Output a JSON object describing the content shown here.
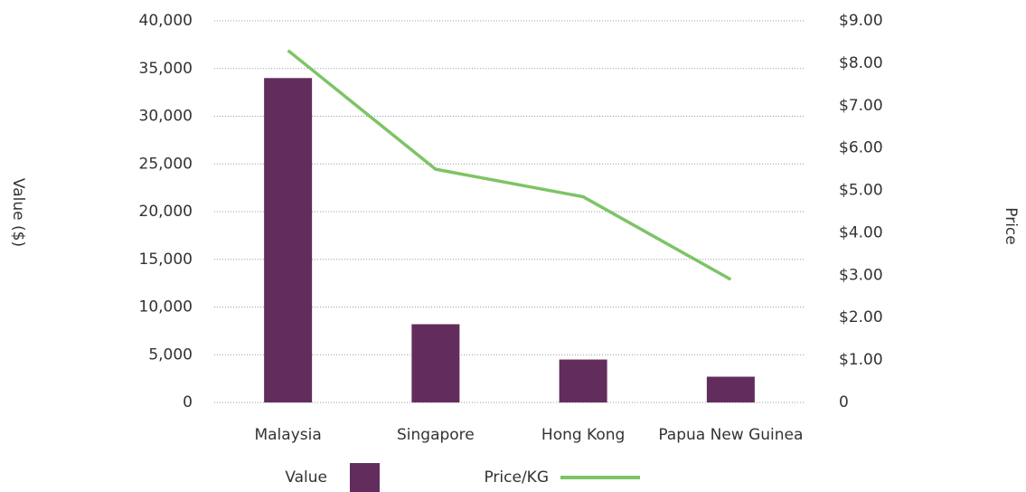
{
  "chart_data": {
    "type": "bar",
    "categories": [
      "Malaysia",
      "Singapore",
      "Hong Kong",
      "Papua New Guinea"
    ],
    "series": [
      {
        "name": "Value",
        "color": "#622d5d",
        "values": [
          34000,
          8200,
          4500,
          2700
        ]
      },
      {
        "name": "Price/KG",
        "color": "#7dc466",
        "type": "line",
        "axis": "y2",
        "values": [
          8.3,
          5.5,
          4.85,
          2.9
        ]
      }
    ],
    "ylabel": "Value ($)",
    "y2label": "Price",
    "ylim": [
      0,
      40000
    ],
    "yticks": [
      0,
      {
        "value": 5000,
        "label": "5,000"
      },
      {
        "value": 10000,
        "label": "10,000"
      },
      {
        "value": 15000,
        "label": "15,000"
      },
      {
        "value": 20000,
        "label": "20,000"
      },
      {
        "value": 25000,
        "label": "25,000"
      },
      {
        "value": 30000,
        "label": "30,000"
      },
      {
        "value": 35000,
        "label": "35,000"
      },
      {
        "value": 40000,
        "label": "40,000"
      }
    ],
    "y2lim": [
      0,
      9
    ],
    "y2ticks": [
      0,
      {
        "value": 1,
        "label": "$1.00"
      },
      {
        "value": 2,
        "label": "$2.00"
      },
      {
        "value": 3,
        "label": "$3.00"
      },
      {
        "value": 4,
        "label": "$4.00"
      },
      {
        "value": 5,
        "label": "$5.00"
      },
      {
        "value": 6,
        "label": "$6.00"
      },
      {
        "value": 7,
        "label": "$7.00"
      },
      {
        "value": 8,
        "label": "$8.00"
      },
      {
        "value": 9,
        "label": "$9.00"
      }
    ],
    "grid": true,
    "legend": "bottom"
  }
}
